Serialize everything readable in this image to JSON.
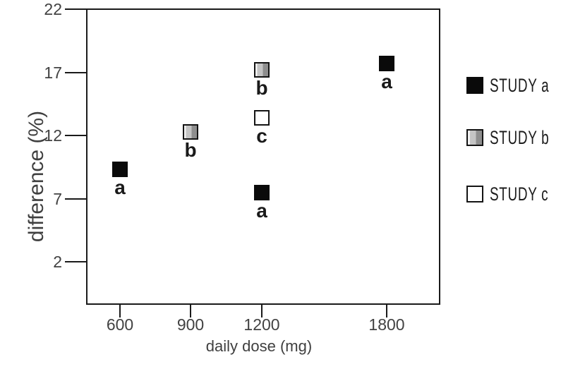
{
  "chart_data": {
    "type": "scatter",
    "title": "",
    "xlabel": "daily dose (mg)",
    "ylabel": "difference (%)",
    "x_tick_values": [
      600,
      900,
      1200,
      1800
    ],
    "x_tick_labels": [
      "600",
      "900",
      "1200",
      "1800"
    ],
    "y_tick_values": [
      22,
      17,
      12,
      7,
      2
    ],
    "y_tick_labels": [
      "22",
      "17",
      "12",
      "7",
      "2"
    ],
    "ylim": [
      -1.5,
      22
    ],
    "grid": false,
    "legend_position": "right-outside",
    "series": [
      {
        "name": "STUDY a",
        "marker": "filled-black-square",
        "points": [
          {
            "x": 600,
            "y": 9.3,
            "label": "a"
          },
          {
            "x": 1200,
            "y": 7.5,
            "label": "a"
          },
          {
            "x": 1800,
            "y": 17.7,
            "label": "a"
          }
        ]
      },
      {
        "name": "STUDY b",
        "marker": "gray-gradient-square",
        "points": [
          {
            "x": 900,
            "y": 12.3,
            "label": "b"
          },
          {
            "x": 1200,
            "y": 17.2,
            "label": "b"
          }
        ]
      },
      {
        "name": "STUDY c",
        "marker": "white-square",
        "points": [
          {
            "x": 1200,
            "y": 13.4,
            "label": "c"
          }
        ]
      }
    ]
  },
  "colors": {
    "axis_line": "#1a1a1a",
    "tick_text": "#424242",
    "axis_title_text": "#3f3f3f",
    "marker_black": "#0a0a0a",
    "marker_border": "#141414",
    "gradient_light": "#f2f2f2",
    "gradient_mid": "#c4c4c4",
    "gradient_dark": "#8e8e8e",
    "point_label_text": "#1a1a1a",
    "legend_text": "#1c1c1c"
  }
}
